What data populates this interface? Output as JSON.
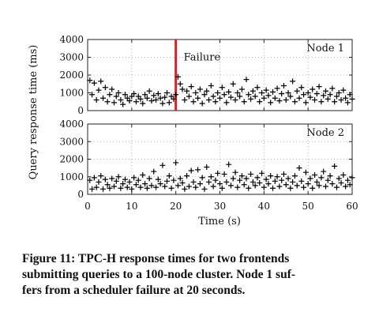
{
  "chart_data": {
    "type": "scatter",
    "xlabel": "Time (s)",
    "ylabel": "Query response time (ms)",
    "xlim": [
      0,
      60
    ],
    "ylim": [
      0,
      4000
    ],
    "x_ticks": [
      "0",
      "10",
      "20",
      "30",
      "40",
      "50",
      "60"
    ],
    "y_ticks": [
      "0",
      "1000",
      "2000",
      "3000",
      "4000"
    ],
    "grid": true,
    "marker": "+",
    "panels": [
      {
        "label": "Node 1",
        "annotation": {
          "text": "Failure",
          "x": 20,
          "color": "#e8191c"
        },
        "points": [
          [
            0.5,
            1700
          ],
          [
            1.0,
            900
          ],
          [
            1.5,
            1550
          ],
          [
            2.0,
            600
          ],
          [
            2.5,
            1150
          ],
          [
            3.0,
            1650
          ],
          [
            3.5,
            700
          ],
          [
            4.0,
            1300
          ],
          [
            4.5,
            500
          ],
          [
            5.0,
            900
          ],
          [
            5.5,
            1200
          ],
          [
            6.0,
            450
          ],
          [
            6.5,
            800
          ],
          [
            7.0,
            1000
          ],
          [
            7.5,
            600
          ],
          [
            8.0,
            350
          ],
          [
            8.5,
            900
          ],
          [
            9.0,
            700
          ],
          [
            9.5,
            550
          ],
          [
            10.0,
            800
          ],
          [
            10.5,
            950
          ],
          [
            11.0,
            500
          ],
          [
            11.5,
            800
          ],
          [
            12.0,
            650
          ],
          [
            12.5,
            400
          ],
          [
            13.0,
            900
          ],
          [
            13.5,
            700
          ],
          [
            14.0,
            1100
          ],
          [
            14.5,
            550
          ],
          [
            15.0,
            850
          ],
          [
            15.5,
            600
          ],
          [
            16.0,
            950
          ],
          [
            16.5,
            700
          ],
          [
            17.0,
            400
          ],
          [
            17.5,
            750
          ],
          [
            18.0,
            1000
          ],
          [
            18.5,
            450
          ],
          [
            19.0,
            800
          ],
          [
            19.5,
            650
          ],
          [
            20.0,
            900
          ],
          [
            20.5,
            1900
          ],
          [
            21.0,
            1500
          ],
          [
            21.5,
            1200
          ],
          [
            22.0,
            600
          ],
          [
            22.5,
            1100
          ],
          [
            23.0,
            800
          ],
          [
            23.5,
            1350
          ],
          [
            24.0,
            500
          ],
          [
            24.5,
            1000
          ],
          [
            25.0,
            700
          ],
          [
            25.5,
            1200
          ],
          [
            26.0,
            400
          ],
          [
            26.5,
            900
          ],
          [
            27.0,
            1100
          ],
          [
            27.5,
            600
          ],
          [
            28.0,
            1400
          ],
          [
            28.5,
            800
          ],
          [
            29.0,
            500
          ],
          [
            29.5,
            1000
          ],
          [
            30.0,
            700
          ],
          [
            30.5,
            1300
          ],
          [
            31.0,
            900
          ],
          [
            31.5,
            450
          ],
          [
            32.0,
            1050
          ],
          [
            32.5,
            750
          ],
          [
            33.0,
            1500
          ],
          [
            33.5,
            600
          ],
          [
            34.0,
            1000
          ],
          [
            34.5,
            800
          ],
          [
            35.0,
            1200
          ],
          [
            35.5,
            500
          ],
          [
            36.0,
            1750
          ],
          [
            36.5,
            900
          ],
          [
            37.0,
            650
          ],
          [
            37.5,
            1100
          ],
          [
            38.0,
            800
          ],
          [
            38.5,
            1300
          ],
          [
            39.0,
            500
          ],
          [
            39.5,
            1000
          ],
          [
            40.0,
            700
          ],
          [
            40.5,
            1150
          ],
          [
            41.0,
            850
          ],
          [
            41.5,
            450
          ],
          [
            42.0,
            1050
          ],
          [
            42.5,
            700
          ],
          [
            43.0,
            1250
          ],
          [
            43.5,
            550
          ],
          [
            44.0,
            950
          ],
          [
            44.5,
            1400
          ],
          [
            45.0,
            600
          ],
          [
            45.5,
            1000
          ],
          [
            46.0,
            800
          ],
          [
            46.5,
            1650
          ],
          [
            47.0,
            500
          ],
          [
            47.5,
            1100
          ],
          [
            48.0,
            700
          ],
          [
            48.5,
            1300
          ],
          [
            49.0,
            900
          ],
          [
            49.5,
            450
          ],
          [
            50.0,
            1000
          ],
          [
            50.5,
            750
          ],
          [
            51.0,
            1200
          ],
          [
            51.5,
            600
          ],
          [
            52.0,
            950
          ],
          [
            52.5,
            1350
          ],
          [
            53.0,
            500
          ],
          [
            53.5,
            850
          ],
          [
            54.0,
            1100
          ],
          [
            54.5,
            650
          ],
          [
            55.0,
            900
          ],
          [
            55.5,
            1250
          ],
          [
            56.0,
            500
          ],
          [
            56.5,
            800
          ],
          [
            57.0,
            1000
          ],
          [
            57.5,
            600
          ],
          [
            58.0,
            1150
          ],
          [
            58.5,
            700
          ],
          [
            59.0,
            450
          ],
          [
            59.5,
            900
          ],
          [
            60.0,
            650
          ]
        ]
      },
      {
        "label": "Node 2",
        "points": [
          [
            0.5,
            800
          ],
          [
            1.0,
            300
          ],
          [
            1.5,
            950
          ],
          [
            2.0,
            400
          ],
          [
            2.5,
            700
          ],
          [
            3.0,
            1050
          ],
          [
            3.5,
            300
          ],
          [
            4.0,
            850
          ],
          [
            4.5,
            550
          ],
          [
            5.0,
            350
          ],
          [
            5.5,
            900
          ],
          [
            6.0,
            450
          ],
          [
            6.5,
            750
          ],
          [
            7.0,
            1000
          ],
          [
            7.5,
            350
          ],
          [
            8.0,
            600
          ],
          [
            8.5,
            850
          ],
          [
            9.0,
            400
          ],
          [
            9.5,
            700
          ],
          [
            10.0,
            300
          ],
          [
            10.5,
            950
          ],
          [
            11.0,
            550
          ],
          [
            11.5,
            800
          ],
          [
            12.0,
            400
          ],
          [
            12.5,
            1100
          ],
          [
            13.0,
            600
          ],
          [
            13.5,
            350
          ],
          [
            14.0,
            900
          ],
          [
            14.5,
            500
          ],
          [
            15.0,
            1300
          ],
          [
            15.5,
            400
          ],
          [
            16.0,
            850
          ],
          [
            16.5,
            600
          ],
          [
            17.0,
            1650
          ],
          [
            17.5,
            450
          ],
          [
            18.0,
            750
          ],
          [
            18.5,
            1050
          ],
          [
            19.0,
            350
          ],
          [
            19.5,
            800
          ],
          [
            20.0,
            1800
          ],
          [
            20.5,
            500
          ],
          [
            21.0,
            900
          ],
          [
            21.5,
            650
          ],
          [
            22.0,
            300
          ],
          [
            22.5,
            1050
          ],
          [
            23.0,
            450
          ],
          [
            23.5,
            1350
          ],
          [
            24.0,
            700
          ],
          [
            24.5,
            400
          ],
          [
            25.0,
            1400
          ],
          [
            25.5,
            600
          ],
          [
            26.0,
            950
          ],
          [
            26.5,
            300
          ],
          [
            27.0,
            1550
          ],
          [
            27.5,
            700
          ],
          [
            28.0,
            1000
          ],
          [
            28.5,
            450
          ],
          [
            29.0,
            800
          ],
          [
            29.5,
            1200
          ],
          [
            30.0,
            600
          ],
          [
            30.5,
            350
          ],
          [
            31.0,
            1150
          ],
          [
            31.5,
            700
          ],
          [
            32.0,
            1700
          ],
          [
            32.5,
            500
          ],
          [
            33.0,
            900
          ],
          [
            33.5,
            1250
          ],
          [
            34.0,
            400
          ],
          [
            34.5,
            800
          ],
          [
            35.0,
            1050
          ],
          [
            35.5,
            550
          ],
          [
            36.0,
            900
          ],
          [
            36.5,
            350
          ],
          [
            37.0,
            1150
          ],
          [
            37.5,
            700
          ],
          [
            38.0,
            500
          ],
          [
            38.5,
            950
          ],
          [
            39.0,
            650
          ],
          [
            39.5,
            1200
          ],
          [
            40.0,
            400
          ],
          [
            40.5,
            850
          ],
          [
            41.0,
            600
          ],
          [
            41.5,
            1050
          ],
          [
            42.0,
            350
          ],
          [
            42.5,
            750
          ],
          [
            43.0,
            1000
          ],
          [
            43.5,
            450
          ],
          [
            44.0,
            800
          ],
          [
            44.5,
            1150
          ],
          [
            45.0,
            550
          ],
          [
            45.5,
            900
          ],
          [
            46.0,
            350
          ],
          [
            46.5,
            700
          ],
          [
            47.0,
            1050
          ],
          [
            47.5,
            500
          ],
          [
            48.0,
            1500
          ],
          [
            48.5,
            750
          ],
          [
            49.0,
            400
          ],
          [
            49.5,
            1250
          ],
          [
            50.0,
            600
          ],
          [
            50.5,
            900
          ],
          [
            51.0,
            350
          ],
          [
            51.5,
            1100
          ],
          [
            52.0,
            700
          ],
          [
            52.5,
            500
          ],
          [
            53.0,
            950
          ],
          [
            53.5,
            1300
          ],
          [
            54.0,
            450
          ],
          [
            54.5,
            800
          ],
          [
            55.0,
            1050
          ],
          [
            55.5,
            600
          ],
          [
            56.0,
            1600
          ],
          [
            56.5,
            400
          ],
          [
            57.0,
            900
          ],
          [
            57.5,
            650
          ],
          [
            58.0,
            1100
          ],
          [
            58.5,
            450
          ],
          [
            59.0,
            800
          ],
          [
            59.5,
            550
          ],
          [
            60.0,
            950
          ]
        ]
      }
    ]
  },
  "caption": [
    "Figure 11: TPC-H response times for two frontends",
    "submitting queries to a 100-node cluster. Node 1 suf-",
    "fers from a scheduler failure at 20 seconds."
  ]
}
